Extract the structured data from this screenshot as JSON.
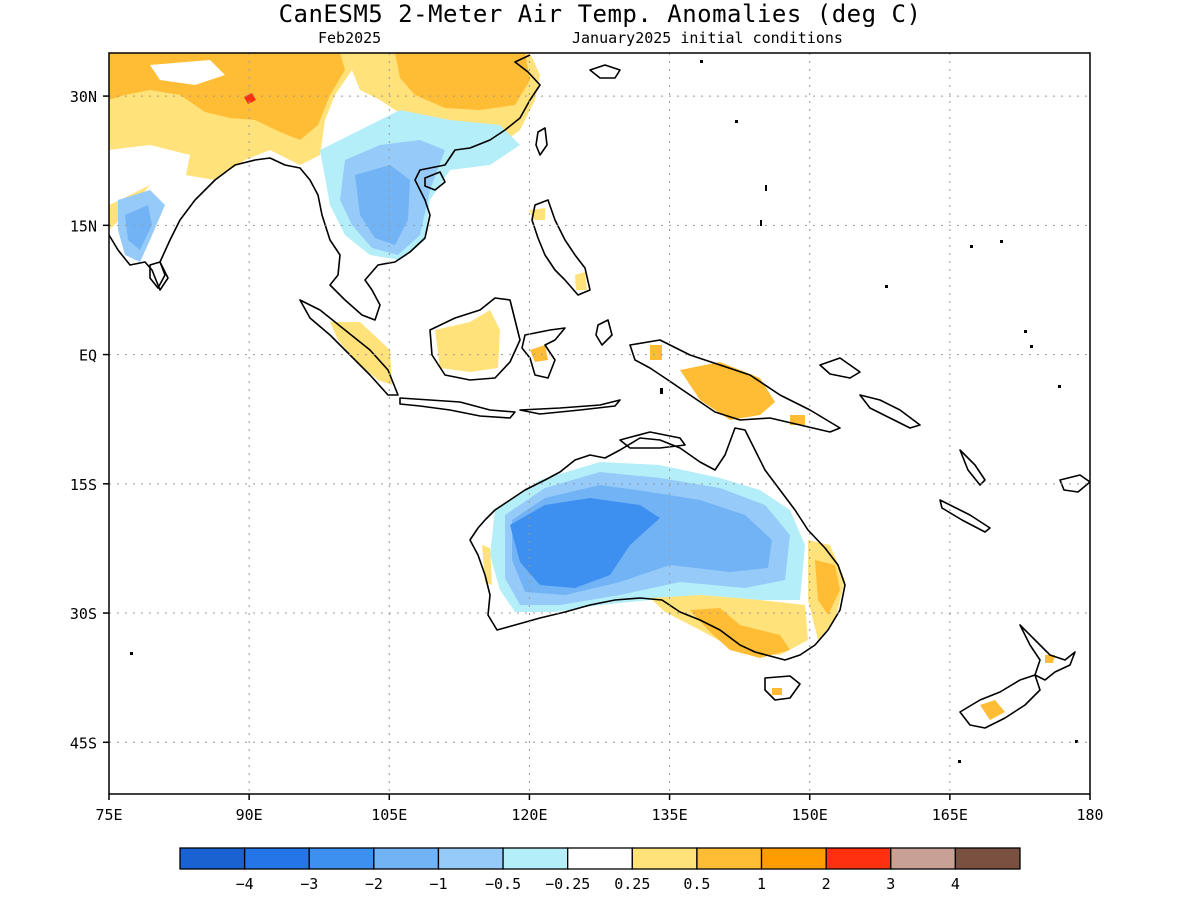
{
  "header": {
    "title": "CanESM5 2-Meter Air Temp. Anomalies (deg C)",
    "valid_month": "Feb2025",
    "initial_conditions": "January2025 initial conditions"
  },
  "map": {
    "lon_range": [
      75,
      180
    ],
    "lat_range": [
      -51,
      35
    ],
    "lat_ticks": [
      {
        "value": 30,
        "label": "30N"
      },
      {
        "value": 15,
        "label": "15N"
      },
      {
        "value": 0,
        "label": "EQ"
      },
      {
        "value": -15,
        "label": "15S"
      },
      {
        "value": -30,
        "label": "30S"
      },
      {
        "value": -45,
        "label": "45S"
      }
    ],
    "lon_ticks": [
      {
        "value": 75,
        "label": "75E"
      },
      {
        "value": 90,
        "label": "90E"
      },
      {
        "value": 105,
        "label": "105E"
      },
      {
        "value": 120,
        "label": "120E"
      },
      {
        "value": 135,
        "label": "135E"
      },
      {
        "value": 150,
        "label": "150E"
      },
      {
        "value": 165,
        "label": "165E"
      },
      {
        "value": 180,
        "label": "180"
      }
    ],
    "grid": "dotted"
  },
  "legend": {
    "colors": [
      "#1a62d1",
      "#2475e8",
      "#3d8ff0",
      "#72b3f6",
      "#96caf8",
      "#b4eef8",
      "#ffffff",
      "#ffe27a",
      "#ffbd35",
      "#ff9d00",
      "#ff3010",
      "#c8a096",
      "#7a5040"
    ],
    "labels": [
      "−4",
      "−3",
      "−2",
      "−1",
      "−0.5",
      "−0.25",
      "0.25",
      "0.5",
      "1",
      "2",
      "3",
      "4"
    ]
  }
}
